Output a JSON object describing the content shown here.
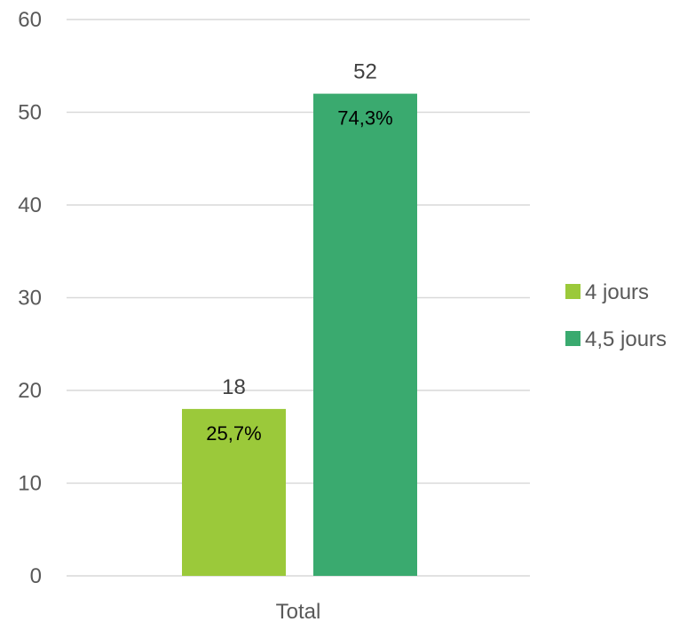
{
  "chart_data": {
    "type": "bar",
    "categories": [
      "Total"
    ],
    "series": [
      {
        "name": "4 jours",
        "values": [
          18
        ],
        "percent_label": "25,7%",
        "color": "#9BC93A"
      },
      {
        "name": "4,5 jours",
        "values": [
          52
        ],
        "percent_label": "74,3%",
        "color": "#3AAA6F"
      }
    ],
    "ylim": [
      0,
      60
    ],
    "yticks": [
      "0",
      "10",
      "20",
      "30",
      "40",
      "50",
      "60"
    ],
    "ytick_values": [
      0,
      10,
      20,
      30,
      40,
      50,
      60
    ],
    "grid": true,
    "legend_position": "right"
  }
}
